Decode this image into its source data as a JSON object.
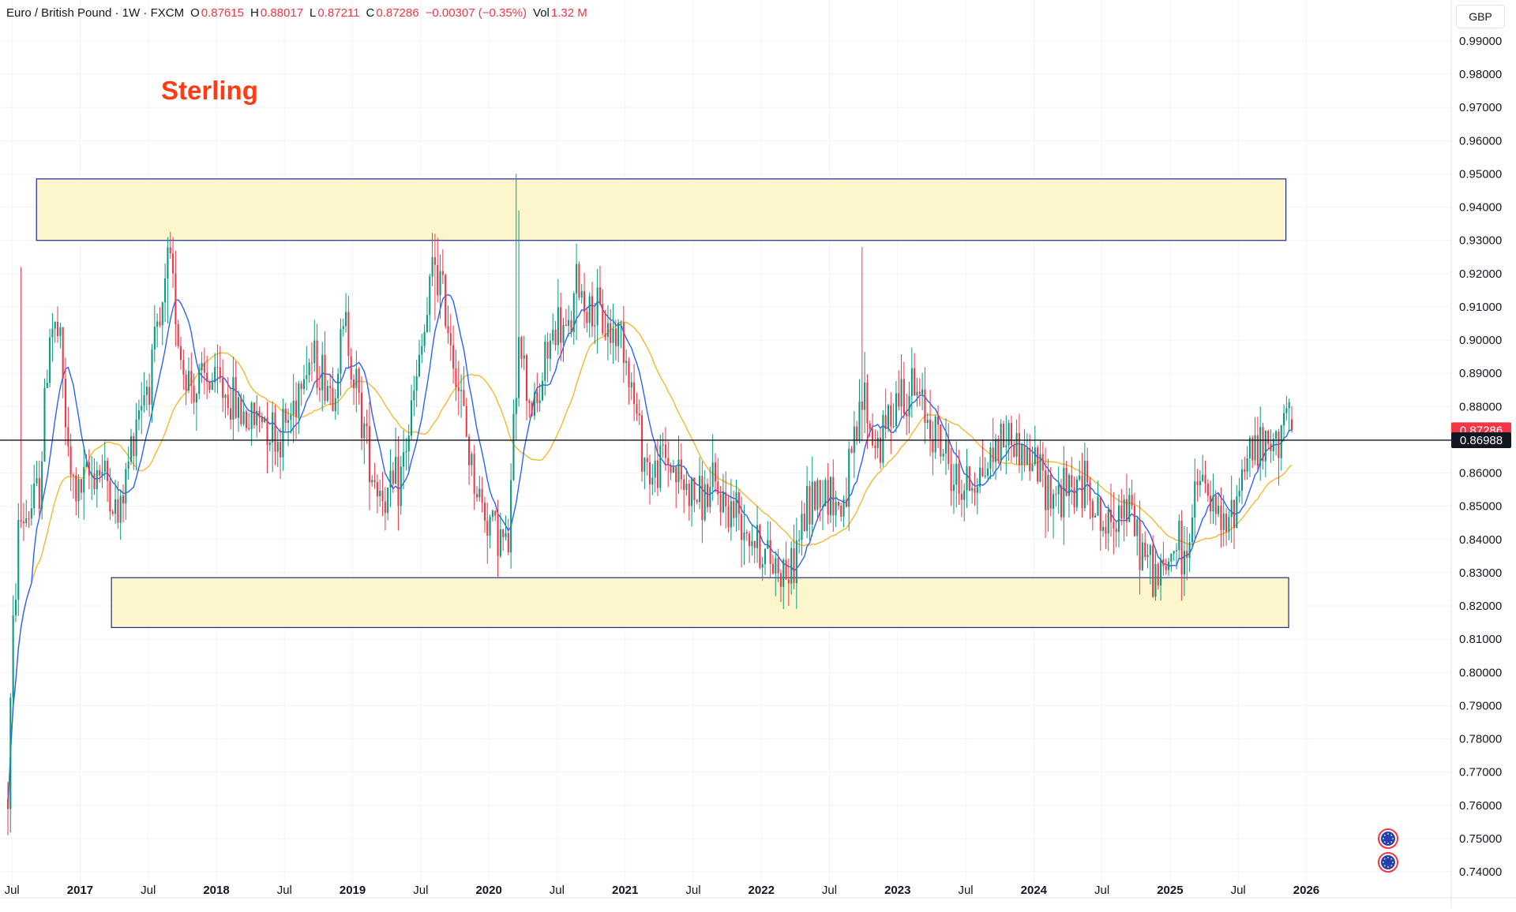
{
  "header": {
    "symbol": "Euro / British Pound · 1W · FXCM",
    "o_label": "O",
    "o_value": "0.87615",
    "h_label": "H",
    "h_value": "0.88017",
    "l_label": "L",
    "l_value": "0.87211",
    "c_label": "C",
    "c_value": "0.87286",
    "change": "−0.00307 (−0.35%)",
    "vol_label": "Vol",
    "vol_value": "1.32 M"
  },
  "currency_button": "GBP",
  "annotation_title": "Sterling",
  "colors": {
    "up": "#089981",
    "down": "#f23645",
    "ma_fast": "#2962ff",
    "ma_slow": "#f5b82e",
    "zone_fill": "#fdf6cc",
    "zone_border": "#1f2a8a",
    "title": "#ff3b14"
  },
  "chart_data": {
    "type": "candlestick",
    "interval": "1W",
    "instrument": "Euro / British Pound",
    "ylim": [
      0.735,
      1.0
    ],
    "y_ticks": [
      "0.99000",
      "0.98000",
      "0.97000",
      "0.96000",
      "0.95000",
      "0.94000",
      "0.93000",
      "0.92000",
      "0.91000",
      "0.90000",
      "0.89000",
      "0.88000",
      "0.87000",
      "0.86000",
      "0.85000",
      "0.84000",
      "0.83000",
      "0.82000",
      "0.81000",
      "0.80000",
      "0.79000",
      "0.78000",
      "0.77000",
      "0.76000",
      "0.75000",
      "0.74000"
    ],
    "x_ticks": [
      {
        "label": "Jul",
        "t": 2016.5,
        "bold": false
      },
      {
        "label": "2017",
        "t": 2017.0,
        "bold": true
      },
      {
        "label": "Jul",
        "t": 2017.5,
        "bold": false
      },
      {
        "label": "2018",
        "t": 2018.0,
        "bold": true
      },
      {
        "label": "Jul",
        "t": 2018.5,
        "bold": false
      },
      {
        "label": "2019",
        "t": 2019.0,
        "bold": true
      },
      {
        "label": "Jul",
        "t": 2019.5,
        "bold": false
      },
      {
        "label": "2020",
        "t": 2020.0,
        "bold": true
      },
      {
        "label": "Jul",
        "t": 2020.5,
        "bold": false
      },
      {
        "label": "2021",
        "t": 2021.0,
        "bold": true
      },
      {
        "label": "Jul",
        "t": 2021.5,
        "bold": false
      },
      {
        "label": "2022",
        "t": 2022.0,
        "bold": true
      },
      {
        "label": "Jul",
        "t": 2022.5,
        "bold": false
      },
      {
        "label": "2023",
        "t": 2023.0,
        "bold": true
      },
      {
        "label": "Jul",
        "t": 2023.5,
        "bold": false
      },
      {
        "label": "2024",
        "t": 2024.0,
        "bold": true
      },
      {
        "label": "Jul",
        "t": 2024.5,
        "bold": false
      },
      {
        "label": "2025",
        "t": 2025.0,
        "bold": true
      },
      {
        "label": "Jul",
        "t": 2025.5,
        "bold": false
      },
      {
        "label": "2026",
        "t": 2026.0,
        "bold": true
      }
    ],
    "xlim": [
      2016.47,
      2026.6
    ],
    "price_path": [
      [
        2016.47,
        0.762
      ],
      [
        2016.5,
        0.805
      ],
      [
        2016.55,
        0.845
      ],
      [
        2016.62,
        0.848
      ],
      [
        2016.7,
        0.855
      ],
      [
        2016.78,
        0.905
      ],
      [
        2016.85,
        0.9
      ],
      [
        2016.92,
        0.86
      ],
      [
        2016.98,
        0.853
      ],
      [
        2017.05,
        0.858
      ],
      [
        2017.12,
        0.862
      ],
      [
        2017.2,
        0.858
      ],
      [
        2017.28,
        0.845
      ],
      [
        2017.35,
        0.862
      ],
      [
        2017.42,
        0.88
      ],
      [
        2017.5,
        0.888
      ],
      [
        2017.6,
        0.905
      ],
      [
        2017.65,
        0.925
      ],
      [
        2017.7,
        0.91
      ],
      [
        2017.75,
        0.892
      ],
      [
        2017.85,
        0.885
      ],
      [
        2017.95,
        0.888
      ],
      [
        2018.05,
        0.885
      ],
      [
        2018.15,
        0.88
      ],
      [
        2018.25,
        0.875
      ],
      [
        2018.35,
        0.878
      ],
      [
        2018.45,
        0.87
      ],
      [
        2018.55,
        0.878
      ],
      [
        2018.65,
        0.895
      ],
      [
        2018.75,
        0.892
      ],
      [
        2018.85,
        0.885
      ],
      [
        2018.95,
        0.905
      ],
      [
        2019.05,
        0.88
      ],
      [
        2019.15,
        0.86
      ],
      [
        2019.25,
        0.852
      ],
      [
        2019.35,
        0.858
      ],
      [
        2019.45,
        0.882
      ],
      [
        2019.55,
        0.908
      ],
      [
        2019.6,
        0.925
      ],
      [
        2019.65,
        0.915
      ],
      [
        2019.72,
        0.902
      ],
      [
        2019.8,
        0.88
      ],
      [
        2019.88,
        0.86
      ],
      [
        2019.95,
        0.85
      ],
      [
        2020.02,
        0.845
      ],
      [
        2020.1,
        0.84
      ],
      [
        2020.14,
        0.835
      ],
      [
        2020.18,
        0.87
      ],
      [
        2020.22,
        0.905
      ],
      [
        2020.28,
        0.885
      ],
      [
        2020.35,
        0.878
      ],
      [
        2020.42,
        0.895
      ],
      [
        2020.5,
        0.905
      ],
      [
        2020.58,
        0.9
      ],
      [
        2020.65,
        0.918
      ],
      [
        2020.72,
        0.91
      ],
      [
        2020.8,
        0.907
      ],
      [
        2020.9,
        0.902
      ],
      [
        2020.98,
        0.903
      ],
      [
        2021.05,
        0.885
      ],
      [
        2021.12,
        0.868
      ],
      [
        2021.2,
        0.858
      ],
      [
        2021.28,
        0.865
      ],
      [
        2021.35,
        0.862
      ],
      [
        2021.45,
        0.855
      ],
      [
        2021.55,
        0.852
      ],
      [
        2021.65,
        0.855
      ],
      [
        2021.75,
        0.85
      ],
      [
        2021.85,
        0.848
      ],
      [
        2021.95,
        0.84
      ],
      [
        2022.05,
        0.834
      ],
      [
        2022.15,
        0.832
      ],
      [
        2022.22,
        0.83
      ],
      [
        2022.3,
        0.845
      ],
      [
        2022.4,
        0.855
      ],
      [
        2022.5,
        0.855
      ],
      [
        2022.58,
        0.848
      ],
      [
        2022.65,
        0.86
      ],
      [
        2022.72,
        0.875
      ],
      [
        2022.75,
        0.885
      ],
      [
        2022.8,
        0.872
      ],
      [
        2022.88,
        0.868
      ],
      [
        2022.95,
        0.88
      ],
      [
        2023.02,
        0.885
      ],
      [
        2023.1,
        0.885
      ],
      [
        2023.18,
        0.88
      ],
      [
        2023.25,
        0.875
      ],
      [
        2023.35,
        0.865
      ],
      [
        2023.45,
        0.855
      ],
      [
        2023.55,
        0.858
      ],
      [
        2023.65,
        0.862
      ],
      [
        2023.72,
        0.868
      ],
      [
        2023.8,
        0.872
      ],
      [
        2023.88,
        0.868
      ],
      [
        2023.95,
        0.865
      ],
      [
        2024.02,
        0.862
      ],
      [
        2024.1,
        0.856
      ],
      [
        2024.2,
        0.853
      ],
      [
        2024.3,
        0.855
      ],
      [
        2024.4,
        0.858
      ],
      [
        2024.48,
        0.845
      ],
      [
        2024.55,
        0.842
      ],
      [
        2024.62,
        0.852
      ],
      [
        2024.7,
        0.848
      ],
      [
        2024.78,
        0.838
      ],
      [
        2024.85,
        0.832
      ],
      [
        2024.92,
        0.828
      ],
      [
        2024.97,
        0.83
      ],
      [
        2025.0,
        0.835
      ],
      [
        2025.05,
        0.84
      ],
      [
        2025.1,
        0.832
      ],
      [
        2025.15,
        0.845
      ],
      [
        2025.22,
        0.858
      ],
      [
        2025.28,
        0.852
      ],
      [
        2025.35,
        0.845
      ],
      [
        2025.42,
        0.842
      ],
      [
        2025.5,
        0.855
      ],
      [
        2025.55,
        0.865
      ],
      [
        2025.62,
        0.868
      ],
      [
        2025.7,
        0.866
      ],
      [
        2025.78,
        0.868
      ],
      [
        2025.82,
        0.878
      ],
      [
        2025.86,
        0.88
      ],
      [
        2025.9,
        0.873
      ]
    ],
    "spikes": [
      {
        "t": 2020.2,
        "high": 0.95,
        "low": 0.87
      },
      {
        "t": 2020.22,
        "high": 0.939,
        "low": 0.88
      },
      {
        "t": 2022.73,
        "high": 0.928,
        "low": 0.874
      },
      {
        "t": 2016.56,
        "high": 0.922,
        "low": 0.85
      },
      {
        "t": 2017.65,
        "high": 0.931,
        "low": 0.905
      },
      {
        "t": 2019.6,
        "high": 0.932,
        "low": 0.906
      },
      {
        "t": 2020.65,
        "high": 0.929,
        "low": 0.9
      },
      {
        "t": 2022.2,
        "high": 0.832,
        "low": 0.82
      },
      {
        "t": 2025.1,
        "high": 0.835,
        "low": 0.823
      }
    ],
    "ma_fast_period": 10,
    "ma_slow_period": 30,
    "zones": [
      {
        "top": 0.9485,
        "bottom": 0.93,
        "t_start": 2016.68,
        "t_end": 2025.85
      },
      {
        "top": 0.8285,
        "bottom": 0.8135,
        "t_start": 2017.23,
        "t_end": 2025.87
      }
    ],
    "horizontal_line": 0.86988,
    "price_labels": [
      {
        "label": "0.87286",
        "value": 0.87286,
        "bg": "#f23645"
      },
      {
        "label": "0.86988",
        "value": 0.86988,
        "bg": "#131722"
      }
    ],
    "last_close": 0.87286
  }
}
